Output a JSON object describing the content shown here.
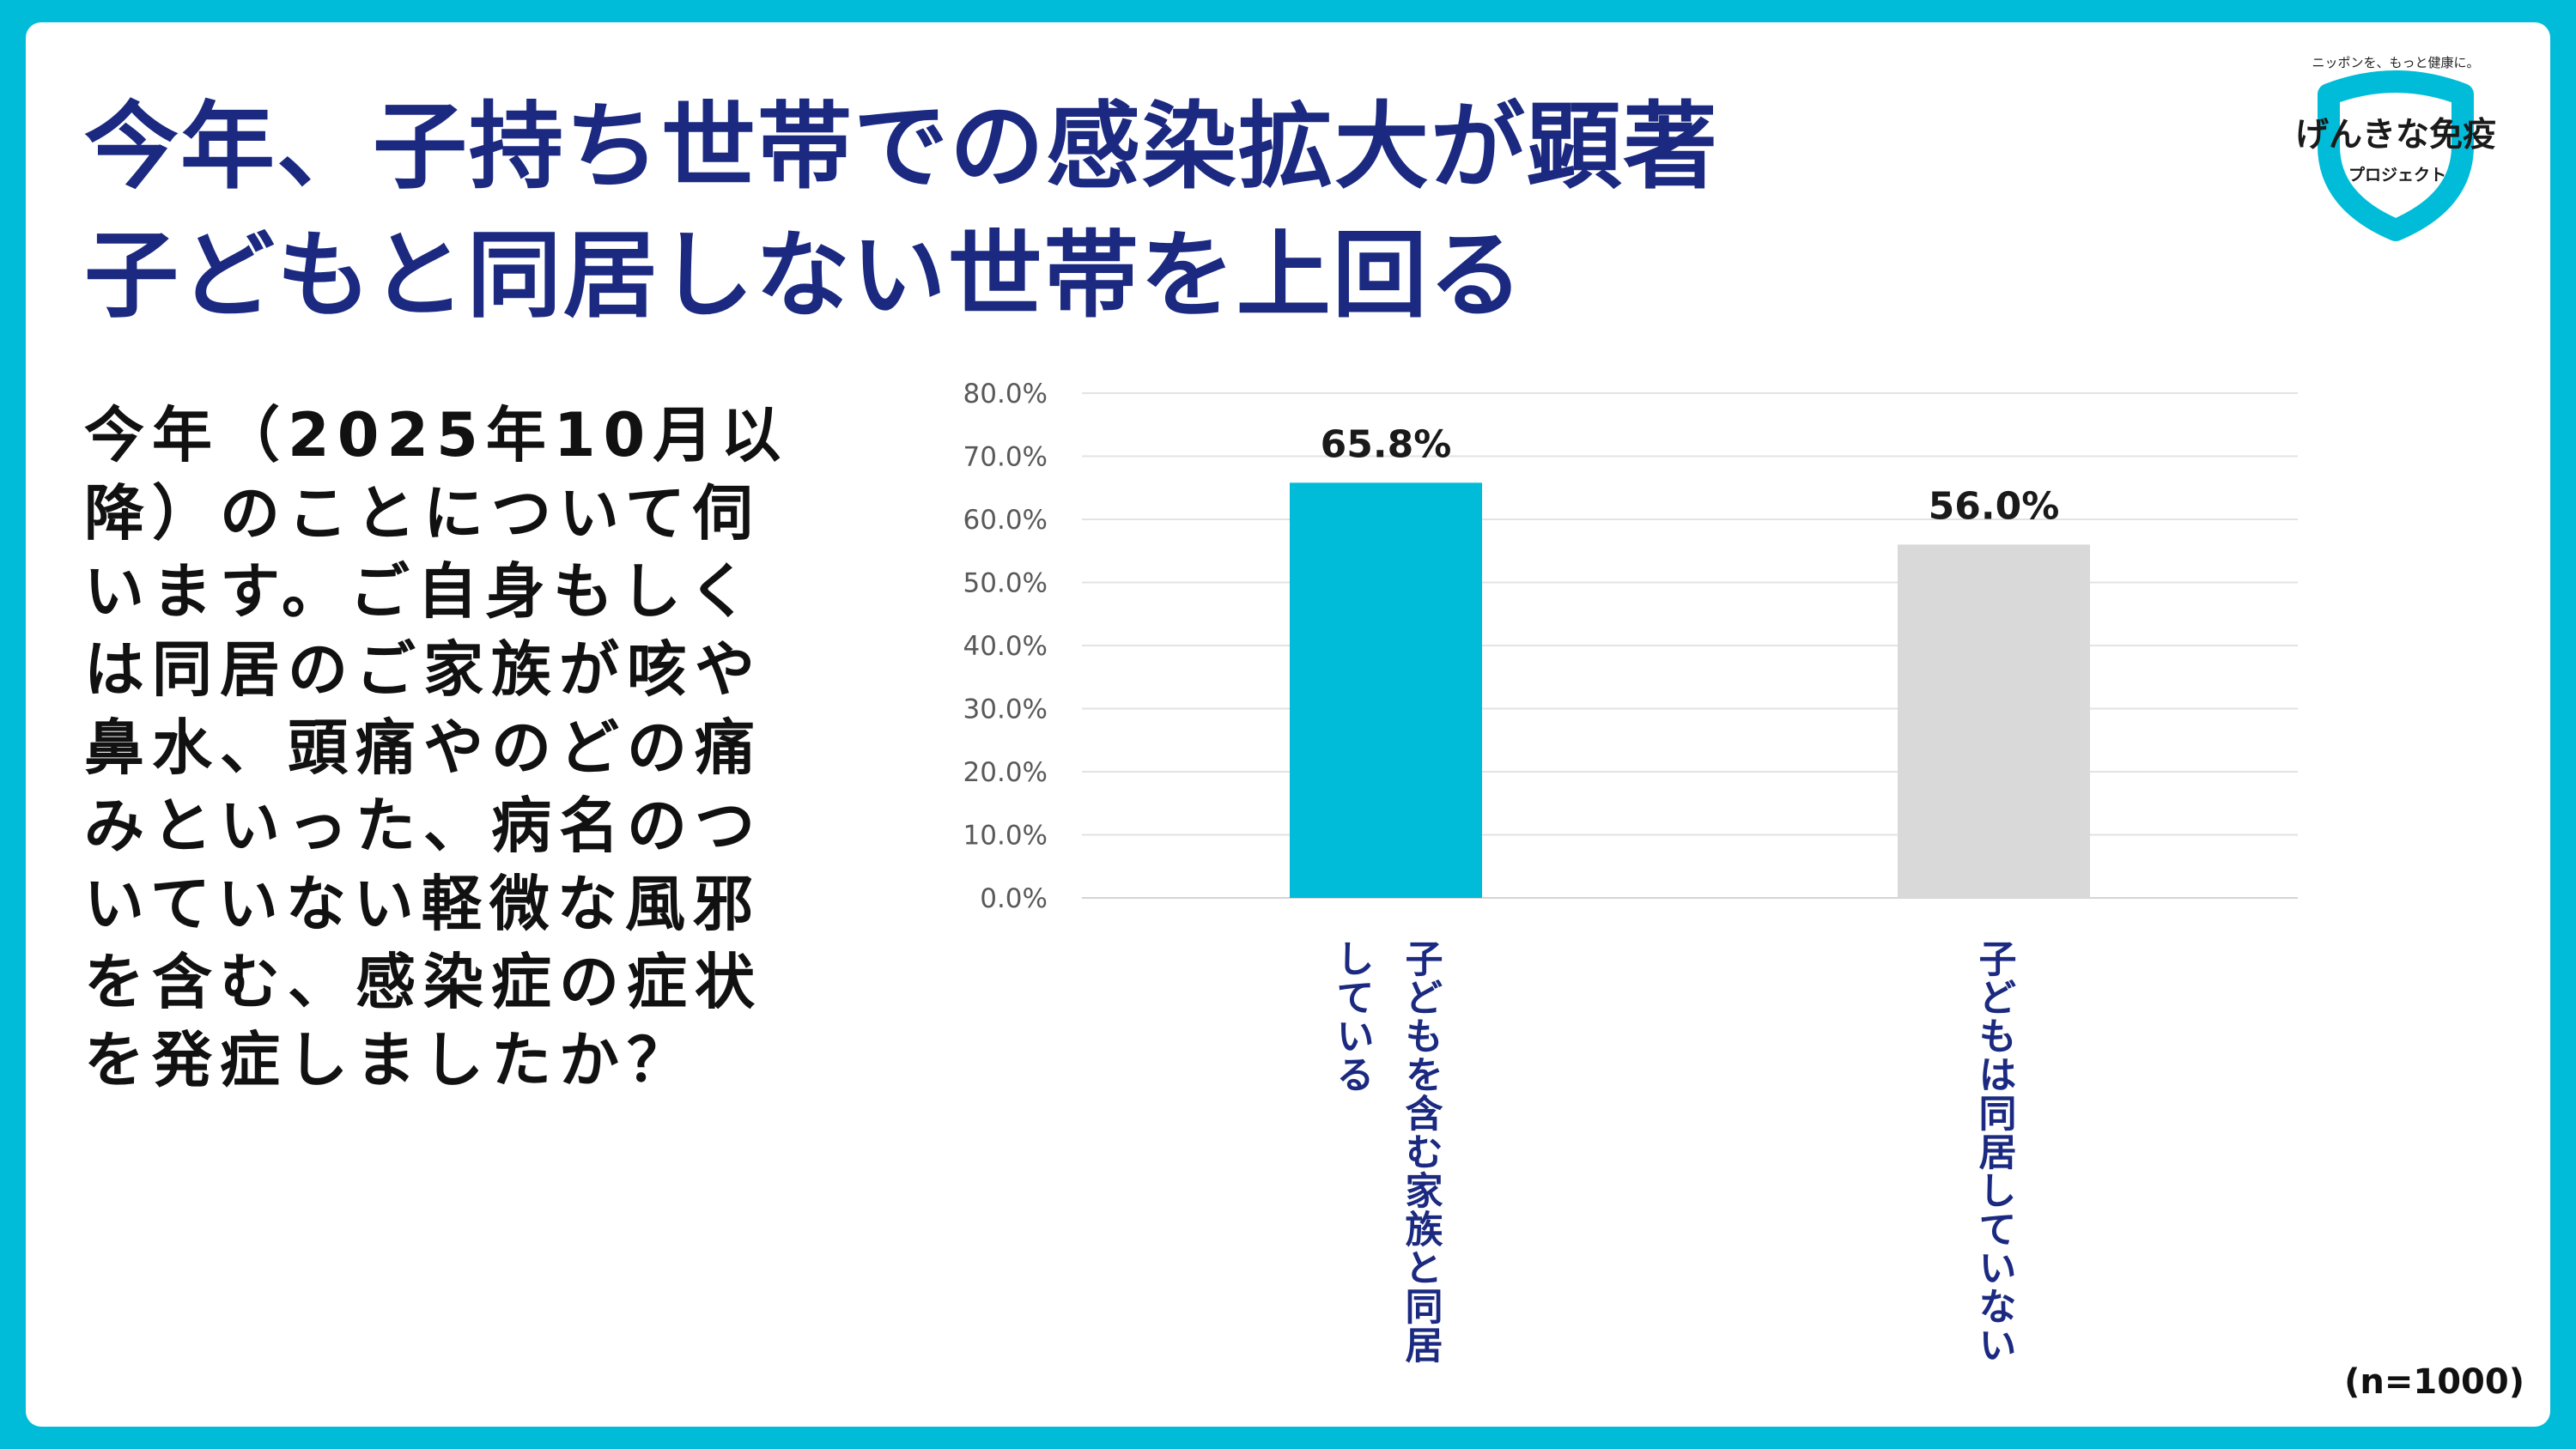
{
  "title": {
    "line1": "今年、子持ち世帯での感染拡大が顕著",
    "line2": "子どもと同居しない世帯を上回る"
  },
  "question": "今年（2025年10月以降）のことについて伺います。ご自身もしくは同居のご家族が咳や鼻水、頭痛やのどの痛みといった、病名のついていない軽微な風邪を含む、感染症の症状を発症しましたか？",
  "logo": {
    "tagline": "ニッポンを、もっと健康に。",
    "name": "げんきな免疫",
    "sub": "プロジェクト",
    "color": "#00bcd8"
  },
  "sample_note": "(n=1000)",
  "colors": {
    "background": "#00bcd8",
    "title": "#1b2a80",
    "bar_with_children": "#00bcd8",
    "bar_without_children": "#d9d9d9"
  },
  "chart_data": {
    "type": "bar",
    "categories": [
      "子どもを含む家族と同居している",
      "子どもは同居していない"
    ],
    "values": [
      65.8,
      56.0
    ],
    "data_labels": [
      "65.8%",
      "56.0%"
    ],
    "bar_colors": [
      "#00bcd8",
      "#d9d9d9"
    ],
    "category_label_lines": [
      [
        "子どもを含む家族と同居",
        "している"
      ],
      [
        "子どもは同居していない"
      ]
    ],
    "yticks": [
      "0.0%",
      "10.0%",
      "20.0%",
      "30.0%",
      "40.0%",
      "50.0%",
      "60.0%",
      "70.0%",
      "80.0%"
    ],
    "ylim": [
      0,
      80
    ],
    "grid": true,
    "title": "",
    "xlabel": "",
    "ylabel": ""
  }
}
